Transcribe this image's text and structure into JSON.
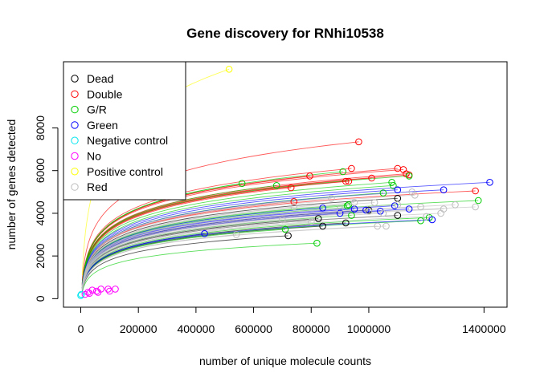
{
  "chart_data": {
    "type": "scatter",
    "title": "Gene discovery for RNhi10538",
    "xlabel": "number of unique molecule counts",
    "ylabel": "number of genes detected",
    "xlim": [
      -60000,
      1480000
    ],
    "ylim": [
      -400,
      11100
    ],
    "x_ticks": [
      0,
      200000,
      400000,
      600000,
      800000,
      1000000,
      1400000
    ],
    "x_tick_labels": [
      "0",
      "200000",
      "400000",
      "600000",
      "800000",
      "1000000",
      "1400000"
    ],
    "y_ticks": [
      0,
      2000,
      4000,
      6000,
      8000
    ],
    "y_tick_labels": [
      "0",
      "2000",
      "4000",
      "6000",
      "8000"
    ],
    "legend_position": "top-left",
    "grid": false,
    "series": [
      {
        "name": "Dead",
        "color": "#000000",
        "x": [
          720000,
          825000,
          840000,
          920000,
          1000000,
          1100000,
          1100000
        ],
        "y": [
          2950,
          3750,
          3400,
          3550,
          4150,
          4700,
          3900
        ],
        "finals": [
          [
            720000,
            2950
          ],
          [
            825000,
            3750
          ],
          [
            840000,
            3400
          ],
          [
            920000,
            3550
          ],
          [
            1000000,
            4150
          ],
          [
            1100000,
            4700
          ],
          [
            1100000,
            3900
          ]
        ]
      },
      {
        "name": "Double",
        "color": "#ff0000",
        "x": [
          965000,
          795000,
          930000,
          940000,
          1010000,
          1100000,
          1120000,
          1130000,
          1140000,
          1370000,
          740000,
          730000,
          920000
        ],
        "y": [
          7350,
          5750,
          5500,
          6100,
          5650,
          6100,
          6050,
          5850,
          5800,
          5050,
          4550,
          5200,
          5500
        ],
        "finals": [
          [
            965000,
            7350
          ],
          [
            795000,
            5750
          ],
          [
            930000,
            5500
          ],
          [
            940000,
            6100
          ],
          [
            1010000,
            5650
          ],
          [
            1100000,
            6100
          ],
          [
            1120000,
            6050
          ],
          [
            1130000,
            5850
          ],
          [
            1140000,
            5800
          ],
          [
            1370000,
            5050
          ],
          [
            740000,
            4550
          ],
          [
            730000,
            5200
          ],
          [
            920000,
            5500
          ]
        ]
      },
      {
        "name": "G/R",
        "color": "#00cd00",
        "x": [
          560000,
          680000,
          710000,
          820000,
          910000,
          925000,
          930000,
          940000,
          1050000,
          1080000,
          1085000,
          1140000,
          1180000,
          1210000,
          1380000
        ],
        "y": [
          5400,
          5300,
          3250,
          2600,
          5950,
          4350,
          4400,
          3900,
          4950,
          5450,
          5300,
          5750,
          3650,
          3800,
          4600
        ],
        "finals": [
          [
            560000,
            5400
          ],
          [
            680000,
            5300
          ],
          [
            710000,
            3250
          ],
          [
            820000,
            2600
          ],
          [
            910000,
            5950
          ],
          [
            925000,
            4350
          ],
          [
            930000,
            4400
          ],
          [
            940000,
            3900
          ],
          [
            1050000,
            4950
          ],
          [
            1080000,
            5450
          ],
          [
            1085000,
            5300
          ],
          [
            1140000,
            5750
          ],
          [
            1180000,
            3650
          ],
          [
            1210000,
            3800
          ],
          [
            1380000,
            4600
          ]
        ]
      },
      {
        "name": "Green",
        "color": "#0000ff",
        "x": [
          430000,
          840000,
          900000,
          950000,
          1040000,
          1090000,
          1100000,
          1140000,
          1220000,
          1260000,
          1420000,
          990000
        ],
        "y": [
          3050,
          4250,
          4000,
          4200,
          4100,
          4350,
          5100,
          4200,
          3700,
          5100,
          5450,
          4150
        ],
        "finals": [
          [
            430000,
            3050
          ],
          [
            840000,
            4250
          ],
          [
            900000,
            4000
          ],
          [
            950000,
            4200
          ],
          [
            1040000,
            4100
          ],
          [
            1090000,
            4350
          ],
          [
            1100000,
            5100
          ],
          [
            1140000,
            4200
          ],
          [
            1220000,
            3700
          ],
          [
            1260000,
            5100
          ],
          [
            1420000,
            5450
          ],
          [
            990000,
            4150
          ]
        ]
      },
      {
        "name": "Negative control",
        "color": "#00e5ee",
        "x": [
          0,
          2000
        ],
        "y": [
          150,
          200
        ],
        "finals": []
      },
      {
        "name": "No",
        "color": "#ff00ff",
        "x": [
          15000,
          30000,
          40000,
          55000,
          70000,
          95000,
          100000,
          120000,
          25000,
          60000
        ],
        "y": [
          200,
          250,
          400,
          350,
          450,
          450,
          350,
          450,
          300,
          300
        ],
        "finals": []
      },
      {
        "name": "Positive control",
        "color": "#ffff00",
        "x": [
          515000
        ],
        "y": [
          10750
        ],
        "finals": [
          [
            515000,
            10750
          ]
        ]
      },
      {
        "name": "Red",
        "color": "#bebebe",
        "x": [
          540000,
          700000,
          740000,
          800000,
          900000,
          950000,
          1000000,
          1020000,
          1030000,
          1050000,
          1060000,
          1100000,
          1150000,
          1180000,
          1200000,
          1250000,
          1260000,
          1300000,
          1370000,
          870000,
          1160000
        ],
        "y": [
          3000,
          3700,
          4300,
          3600,
          4200,
          4500,
          4100,
          4500,
          3400,
          4000,
          3400,
          4400,
          5000,
          4300,
          3850,
          4000,
          4200,
          4400,
          4300,
          4700,
          4850
        ],
        "finals": [
          [
            540000,
            3000
          ],
          [
            700000,
            3700
          ],
          [
            740000,
            4300
          ],
          [
            800000,
            3600
          ],
          [
            900000,
            4200
          ],
          [
            950000,
            4500
          ],
          [
            1000000,
            4100
          ],
          [
            1020000,
            4500
          ],
          [
            1030000,
            3400
          ],
          [
            1050000,
            4000
          ],
          [
            1060000,
            3400
          ],
          [
            1100000,
            4400
          ],
          [
            1150000,
            5000
          ],
          [
            1180000,
            4300
          ],
          [
            1200000,
            3850
          ],
          [
            1250000,
            4000
          ],
          [
            1260000,
            4200
          ],
          [
            1300000,
            4400
          ],
          [
            1370000,
            4300
          ],
          [
            870000,
            4700
          ],
          [
            1160000,
            4850
          ]
        ]
      }
    ]
  }
}
